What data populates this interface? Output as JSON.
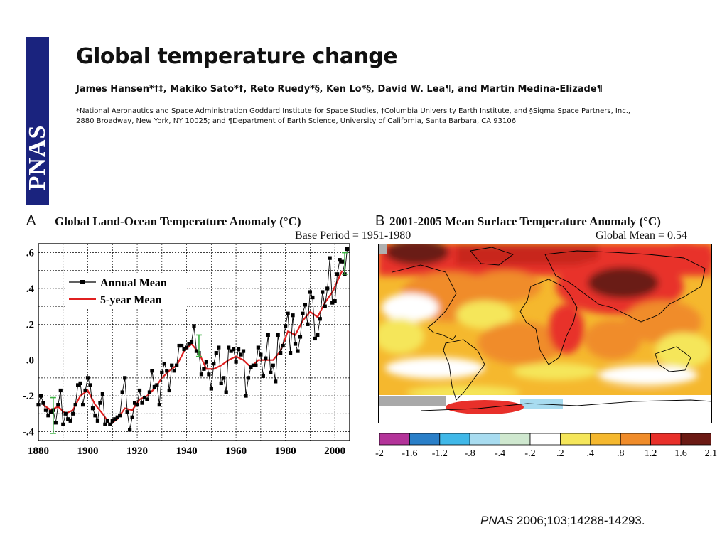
{
  "journal": {
    "logo_text": "PNAS",
    "bar_color": "#1a237e"
  },
  "article": {
    "title": "Global temperature change",
    "authors": "James Hansen*†‡, Makiko Sato*†, Reto Ruedy*§, Ken Lo*§, David W. Lea¶, and Martin Medina-Elizade¶",
    "affiliation_line1": "*National Aeronautics and Space Administration Goddard Institute for Space Studies, †Columbia University Earth Institute, and §Sigma Space Partners, Inc.,",
    "affiliation_line2": "2880 Broadway, New York, NY 10025; and ¶Department of Earth Science, University of California, Santa Barbara, CA 93106"
  },
  "panel_a": {
    "letter": "A",
    "subtitle": "Base Period = 1951-1980"
  },
  "panel_b": {
    "letter": "B",
    "title": "2001-2005 Mean Surface Temperature Anomaly (°C)",
    "subtitle": "Global Mean = 0.54",
    "colorbar_labels": [
      "-2",
      "-1.6",
      "-1.2",
      "-.8",
      "-.4",
      "-.2",
      ".2",
      ".4",
      ".8",
      "1.2",
      "1.6",
      "2.1"
    ],
    "colorbar_colors": [
      "#b33399",
      "#2a7fc8",
      "#40b8e8",
      "#a8dcf0",
      "#cfe8cf",
      "#ffffff",
      "#f5e65a",
      "#f5b82e",
      "#f08c2a",
      "#e8302a",
      "#6b1a14"
    ]
  },
  "citation": {
    "journal": "PNAS",
    "rest": " 2006;103;14288-14293."
  },
  "chart_data": [
    {
      "type": "line",
      "title": "Global Land-Ocean Temperature Anomaly (°C)",
      "xlim": [
        1880,
        2006
      ],
      "ylim": [
        -0.45,
        0.65
      ],
      "x_ticks": [
        1880,
        1900,
        1920,
        1940,
        1960,
        1980,
        2000
      ],
      "x_tick_labels": [
        "1880",
        "1900",
        "1920",
        "1940",
        "1960",
        "1980",
        "2000"
      ],
      "y_ticks": [
        -0.4,
        -0.2,
        0.0,
        0.2,
        0.4,
        0.6
      ],
      "y_tick_labels": [
        "-.4",
        "-.2",
        ".0",
        ".2",
        ".4",
        ".6"
      ],
      "grid": true,
      "legend": "top-left",
      "series": [
        {
          "name": "Annual Mean",
          "color": "#000000",
          "x": [
            1880,
            1881,
            1882,
            1883,
            1884,
            1885,
            1886,
            1887,
            1888,
            1889,
            1890,
            1891,
            1892,
            1893,
            1894,
            1895,
            1896,
            1897,
            1898,
            1899,
            1900,
            1901,
            1902,
            1903,
            1904,
            1905,
            1906,
            1907,
            1908,
            1909,
            1910,
            1911,
            1912,
            1913,
            1914,
            1915,
            1916,
            1917,
            1918,
            1919,
            1920,
            1921,
            1922,
            1923,
            1924,
            1925,
            1926,
            1927,
            1928,
            1929,
            1930,
            1931,
            1932,
            1933,
            1934,
            1935,
            1936,
            1937,
            1938,
            1939,
            1940,
            1941,
            1942,
            1943,
            1944,
            1945,
            1946,
            1947,
            1948,
            1949,
            1950,
            1951,
            1952,
            1953,
            1954,
            1955,
            1956,
            1957,
            1958,
            1959,
            1960,
            1961,
            1962,
            1963,
            1964,
            1965,
            1966,
            1967,
            1968,
            1969,
            1970,
            1971,
            1972,
            1973,
            1974,
            1975,
            1976,
            1977,
            1978,
            1979,
            1980,
            1981,
            1982,
            1983,
            1984,
            1985,
            1986,
            1987,
            1988,
            1989,
            1990,
            1991,
            1992,
            1993,
            1994,
            1995,
            1996,
            1997,
            1998,
            1999,
            2000,
            2001,
            2002,
            2003,
            2004,
            2005
          ],
          "values": [
            -0.25,
            -0.2,
            -0.24,
            -0.28,
            -0.31,
            -0.29,
            -0.28,
            -0.35,
            -0.25,
            -0.17,
            -0.36,
            -0.3,
            -0.33,
            -0.34,
            -0.3,
            -0.25,
            -0.14,
            -0.13,
            -0.25,
            -0.17,
            -0.1,
            -0.14,
            -0.27,
            -0.31,
            -0.34,
            -0.24,
            -0.19,
            -0.36,
            -0.34,
            -0.36,
            -0.34,
            -0.33,
            -0.32,
            -0.31,
            -0.18,
            -0.1,
            -0.29,
            -0.39,
            -0.32,
            -0.24,
            -0.25,
            -0.17,
            -0.24,
            -0.21,
            -0.22,
            -0.18,
            -0.06,
            -0.15,
            -0.14,
            -0.25,
            -0.07,
            -0.02,
            -0.06,
            -0.17,
            -0.03,
            -0.06,
            -0.03,
            0.08,
            0.08,
            0.06,
            0.07,
            0.09,
            0.1,
            0.19,
            0.05,
            0.04,
            -0.08,
            -0.05,
            -0.01,
            -0.08,
            -0.16,
            -0.02,
            0.04,
            0.07,
            -0.13,
            -0.1,
            -0.18,
            0.07,
            0.05,
            0.06,
            -0.01,
            0.06,
            0.03,
            0.05,
            -0.2,
            -0.1,
            -0.04,
            -0.03,
            -0.03,
            0.07,
            0.03,
            -0.09,
            0.01,
            0.14,
            -0.07,
            -0.03,
            -0.12,
            0.14,
            0.04,
            0.08,
            0.19,
            0.26,
            0.04,
            0.25,
            0.09,
            0.05,
            0.13,
            0.26,
            0.31,
            0.2,
            0.38,
            0.35,
            0.12,
            0.14,
            0.23,
            0.38,
            0.3,
            0.4,
            0.57,
            0.32,
            0.33,
            0.48,
            0.56,
            0.55,
            0.48,
            0.62
          ]
        },
        {
          "name": "5-year Mean",
          "color": "#e02020",
          "x": [
            1882,
            1885,
            1888,
            1891,
            1894,
            1897,
            1900,
            1903,
            1906,
            1909,
            1912,
            1915,
            1918,
            1921,
            1924,
            1927,
            1930,
            1933,
            1936,
            1939,
            1942,
            1945,
            1948,
            1951,
            1954,
            1957,
            1960,
            1963,
            1966,
            1969,
            1972,
            1975,
            1978,
            1981,
            1984,
            1987,
            1990,
            1993,
            1996,
            1999,
            2002,
            2003
          ],
          "values": [
            -0.25,
            -0.28,
            -0.26,
            -0.3,
            -0.28,
            -0.2,
            -0.17,
            -0.25,
            -0.3,
            -0.36,
            -0.33,
            -0.27,
            -0.28,
            -0.22,
            -0.2,
            -0.16,
            -0.1,
            -0.06,
            -0.03,
            0.05,
            0.09,
            0.04,
            -0.05,
            -0.05,
            -0.03,
            0.0,
            0.02,
            0.0,
            -0.04,
            0.0,
            0.0,
            0.0,
            0.05,
            0.16,
            0.14,
            0.22,
            0.27,
            0.24,
            0.32,
            0.38,
            0.47,
            0.5
          ]
        }
      ],
      "error_bars": [
        {
          "x": 1886,
          "center": -0.31,
          "half_width": 0.1,
          "color": "#3cb043"
        },
        {
          "x": 1945,
          "center": 0.08,
          "half_width": 0.06,
          "color": "#3cb043"
        },
        {
          "x": 2004,
          "center": 0.54,
          "half_width": 0.06,
          "color": "#3cb043"
        }
      ]
    }
  ]
}
